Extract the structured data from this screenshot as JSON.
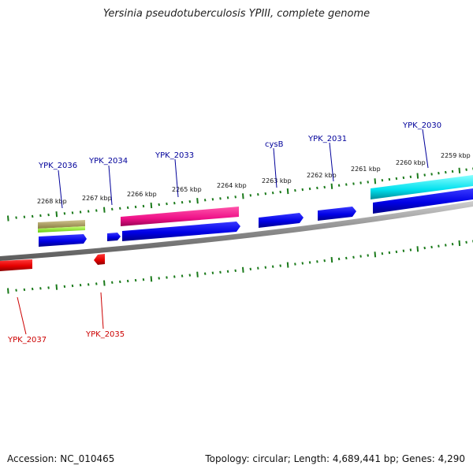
{
  "title": "Yersinia pseudotuberculosis YPIII, complete genome",
  "footer": {
    "accession": "Accession: NC_010465",
    "stats": "Topology: circular; Length: 4,689,441 bp; Genes: 4,290"
  },
  "colors": {
    "forward_gene": "#0000ee",
    "reverse_gene": "#ee0000",
    "forward_label": "#00009a",
    "reverse_label": "#cc0000",
    "backbone": "#888888",
    "tick": "#1a7a1a",
    "cds_pink": "#ee1188",
    "cds_cyan": "#00e0ee",
    "cds_olive": "#a89a5a",
    "cds_green": "#88ee22"
  },
  "position_labels": [
    "2268 kbp",
    "2267 kbp",
    "2266 kbp",
    "2265 kbp",
    "2264 kbp",
    "2263 kbp",
    "2262 kbp",
    "2261 kbp",
    "2260 kbp",
    "2259 kbp"
  ],
  "forward_genes": [
    "YPK_2036",
    "YPK_2034",
    "YPK_2033",
    "cysB",
    "YPK_2031",
    "YPK_2030"
  ],
  "reverse_genes": [
    "YPK_2037",
    "YPK_2035"
  ]
}
